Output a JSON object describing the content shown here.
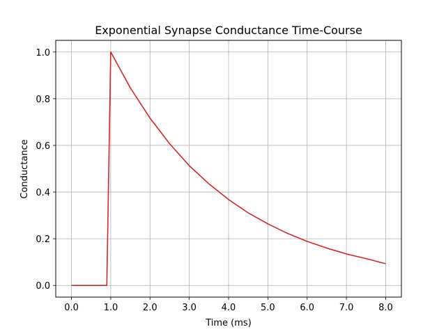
{
  "chart_data": {
    "type": "line",
    "title": "Exponential Synapse Conductance Time-Course",
    "xlabel": "Time (ms)",
    "ylabel": "Conductance",
    "xlim": [
      -0.4,
      8.4
    ],
    "ylim": [
      -0.05,
      1.05
    ],
    "xticks": [
      0.0,
      1.0,
      2.0,
      3.0,
      4.0,
      5.0,
      6.0,
      7.0,
      8.0
    ],
    "xtick_labels": [
      "0.0",
      "1.0",
      "2.0",
      "3.0",
      "4.0",
      "5.0",
      "6.0",
      "7.0",
      "8.0"
    ],
    "yticks": [
      0.0,
      0.2,
      0.4,
      0.6,
      0.8,
      1.0
    ],
    "ytick_labels": [
      "0.0",
      "0.2",
      "0.4",
      "0.6",
      "0.8",
      "1.0"
    ],
    "grid": true,
    "series": [
      {
        "color": "#d62728",
        "x": [
          0.0,
          0.9,
          1.0,
          1.5,
          2.0,
          2.5,
          3.0,
          3.5,
          4.0,
          4.5,
          5.0,
          5.5,
          6.0,
          6.5,
          7.0,
          7.5,
          8.0
        ],
        "y": [
          0.0,
          0.0,
          1.0,
          0.846,
          0.717,
          0.607,
          0.513,
          0.435,
          0.368,
          0.311,
          0.264,
          0.223,
          0.189,
          0.16,
          0.135,
          0.115,
          0.093
        ]
      }
    ]
  }
}
